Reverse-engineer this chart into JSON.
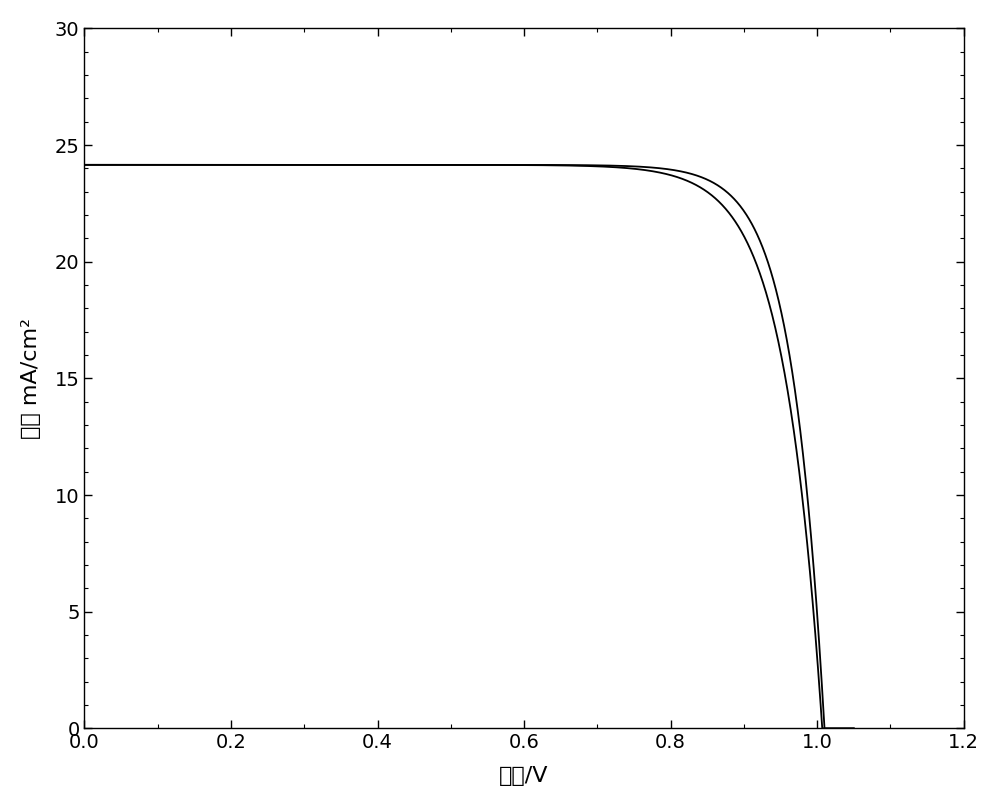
{
  "title": "",
  "xlabel": "电压/V",
  "ylabel": "电流 mA/cm²",
  "xlim": [
    0.0,
    1.2
  ],
  "ylim": [
    0,
    30
  ],
  "xticks": [
    0.0,
    0.2,
    0.4,
    0.6,
    0.8,
    1.0,
    1.2
  ],
  "yticks": [
    0,
    5,
    10,
    15,
    20,
    25,
    30
  ],
  "line_color": "#000000",
  "line_width": 1.3,
  "background_color": "#ffffff",
  "curve1": {
    "Jsc": 24.15,
    "Voc": 1.007,
    "n": 2.0
  },
  "curve2": {
    "Jsc": 24.15,
    "Voc": 1.01,
    "n": 1.7
  },
  "figsize": [
    10.0,
    8.07
  ],
  "dpi": 100
}
